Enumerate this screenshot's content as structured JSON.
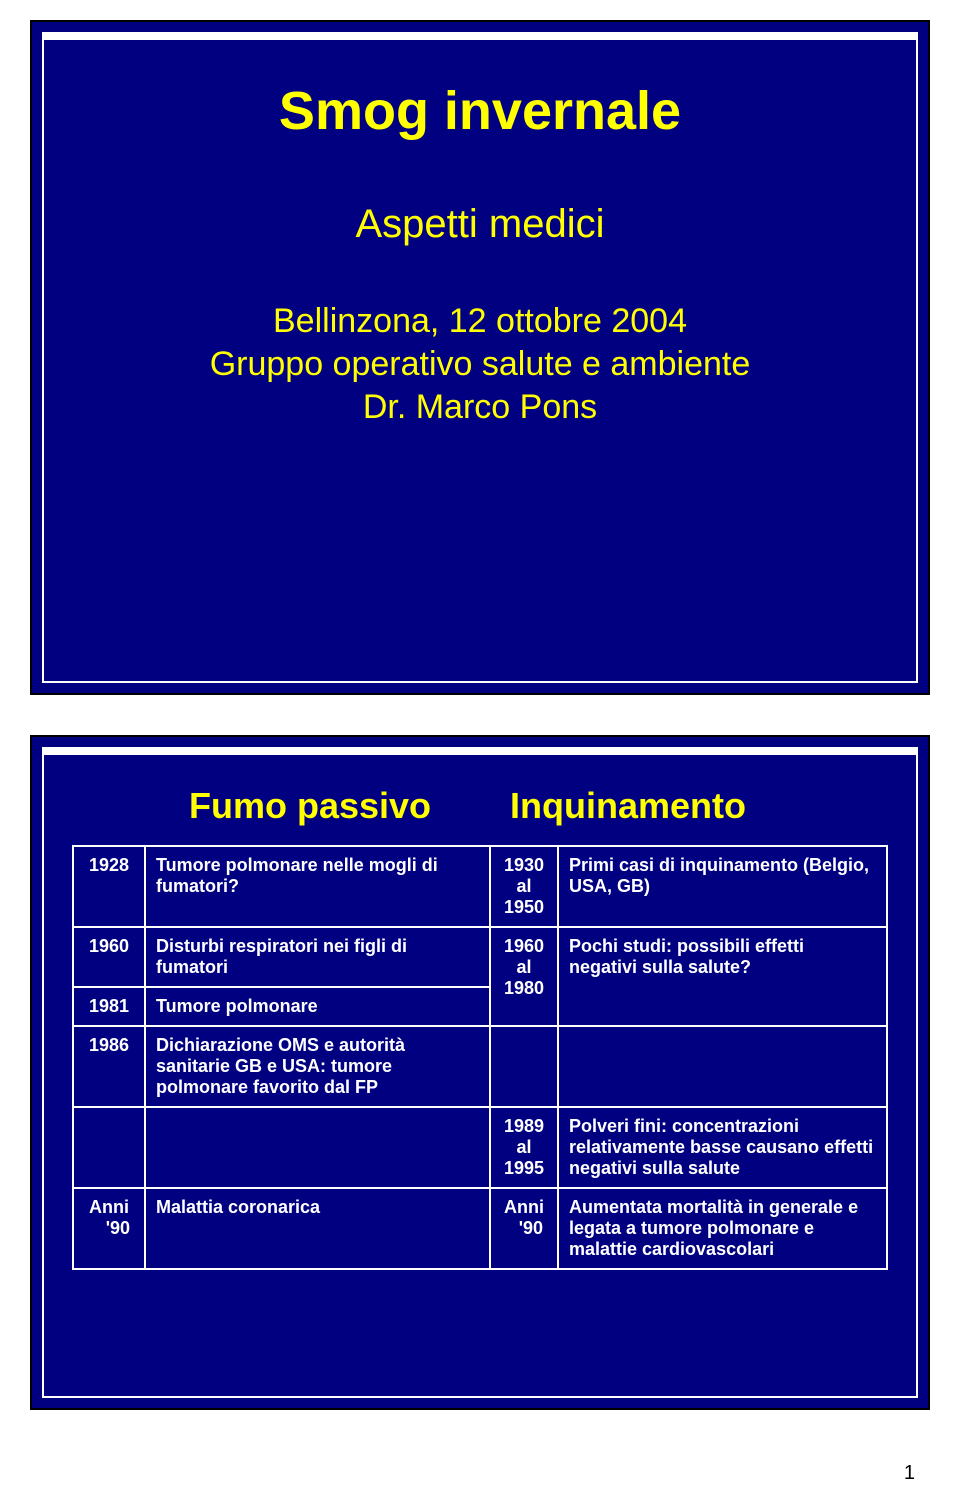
{
  "page_number": "1",
  "slide1": {
    "title": "Smog invernale",
    "subtitle": "Aspetti medici",
    "line1": "Bellinzona, 12 ottobre 2004",
    "line2": "Gruppo operativo salute e ambiente",
    "line3": "Dr. Marco Pons"
  },
  "slide2": {
    "header_left": "Fumo passivo",
    "header_right": "Inquinamento",
    "rows": [
      {
        "y1": "1928",
        "d1": "Tumore polmonare nelle mogli di fumatori?",
        "y2a": "1930",
        "y2b": "al",
        "y2c": "1950",
        "d2": "Primi casi di inquinamento (Belgio, USA, GB)"
      },
      {
        "y1": "1960",
        "d1": "Disturbi respiratori nei figli di fumatori",
        "y2a": "1960",
        "y2b": "al",
        "y2c": "1980",
        "d2": "Pochi studi: possibili effetti negativi sulla salute?"
      },
      {
        "y1": "1981",
        "d1": "Tumore polmonare"
      },
      {
        "y1": "1986",
        "d1": "Dichiarazione OMS e autorità sanitarie GB e USA: tumore polmonare favorito dal FP"
      },
      {
        "y2a": "1989",
        "y2b": "al",
        "y2c": "1995",
        "d2": "Polveri fini: concentrazioni relativamente basse causano effetti negativi sulla salute"
      },
      {
        "y1a": "Anni",
        "y1b": "'90",
        "d1": "Malattia coronarica",
        "y2a": "Anni",
        "y2b": "'90",
        "d2": "Aumentata mortalità in generale e legata a tumore polmonare e malattie cardiovascolari"
      }
    ]
  }
}
